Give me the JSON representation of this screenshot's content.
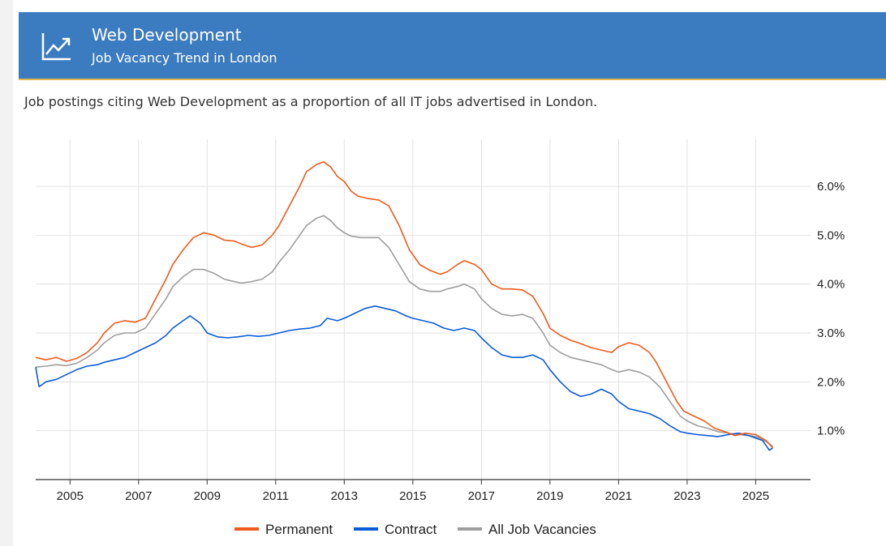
{
  "header": {
    "title": "Web Development",
    "subtitle": "Job Vacancy Trend in London",
    "icon": "trending-up-icon"
  },
  "description": "Job postings citing Web Development as a proportion of all IT jobs advertised in London.",
  "chart_data": {
    "type": "line",
    "x_ticks": [
      "2005",
      "2007",
      "2009",
      "2011",
      "2013",
      "2015",
      "2017",
      "2019",
      "2021",
      "2023",
      "2025"
    ],
    "y_ticks": [
      "1.0%",
      "2.0%",
      "3.0%",
      "4.0%",
      "5.0%",
      "6.0%"
    ],
    "xlim": [
      2004.0,
      2026.6
    ],
    "ylim": [
      0.0,
      6.0
    ],
    "y_axis_position": "right",
    "grid": true,
    "legend_position": "bottom",
    "series": [
      {
        "name": "Permanent",
        "color": "#f05a1a",
        "points": [
          [
            2004.0,
            2.5
          ],
          [
            2004.3,
            2.45
          ],
          [
            2004.6,
            2.5
          ],
          [
            2004.9,
            2.42
          ],
          [
            2005.2,
            2.48
          ],
          [
            2005.5,
            2.6
          ],
          [
            2005.8,
            2.8
          ],
          [
            2006.0,
            3.0
          ],
          [
            2006.3,
            3.2
          ],
          [
            2006.6,
            3.25
          ],
          [
            2006.9,
            3.22
          ],
          [
            2007.2,
            3.3
          ],
          [
            2007.5,
            3.7
          ],
          [
            2007.8,
            4.1
          ],
          [
            2008.0,
            4.4
          ],
          [
            2008.3,
            4.7
          ],
          [
            2008.6,
            4.95
          ],
          [
            2008.9,
            5.05
          ],
          [
            2009.2,
            5.0
          ],
          [
            2009.5,
            4.9
          ],
          [
            2009.8,
            4.88
          ],
          [
            2010.0,
            4.82
          ],
          [
            2010.3,
            4.75
          ],
          [
            2010.6,
            4.8
          ],
          [
            2010.9,
            5.0
          ],
          [
            2011.1,
            5.2
          ],
          [
            2011.4,
            5.6
          ],
          [
            2011.7,
            6.0
          ],
          [
            2011.9,
            6.3
          ],
          [
            2012.2,
            6.45
          ],
          [
            2012.4,
            6.5
          ],
          [
            2012.6,
            6.4
          ],
          [
            2012.8,
            6.2
          ],
          [
            2013.0,
            6.1
          ],
          [
            2013.2,
            5.9
          ],
          [
            2013.4,
            5.8
          ],
          [
            2013.7,
            5.75
          ],
          [
            2014.0,
            5.72
          ],
          [
            2014.3,
            5.6
          ],
          [
            2014.6,
            5.2
          ],
          [
            2014.9,
            4.7
          ],
          [
            2015.2,
            4.4
          ],
          [
            2015.5,
            4.28
          ],
          [
            2015.8,
            4.2
          ],
          [
            2016.0,
            4.25
          ],
          [
            2016.3,
            4.4
          ],
          [
            2016.5,
            4.48
          ],
          [
            2016.8,
            4.4
          ],
          [
            2017.0,
            4.3
          ],
          [
            2017.3,
            4.0
          ],
          [
            2017.6,
            3.9
          ],
          [
            2017.9,
            3.9
          ],
          [
            2018.2,
            3.88
          ],
          [
            2018.5,
            3.75
          ],
          [
            2018.8,
            3.4
          ],
          [
            2019.0,
            3.1
          ],
          [
            2019.3,
            2.95
          ],
          [
            2019.6,
            2.85
          ],
          [
            2019.9,
            2.78
          ],
          [
            2020.2,
            2.7
          ],
          [
            2020.5,
            2.65
          ],
          [
            2020.8,
            2.6
          ],
          [
            2021.0,
            2.72
          ],
          [
            2021.3,
            2.8
          ],
          [
            2021.6,
            2.75
          ],
          [
            2021.9,
            2.6
          ],
          [
            2022.1,
            2.4
          ],
          [
            2022.4,
            2.0
          ],
          [
            2022.7,
            1.6
          ],
          [
            2022.9,
            1.4
          ],
          [
            2023.2,
            1.3
          ],
          [
            2023.5,
            1.2
          ],
          [
            2023.8,
            1.05
          ],
          [
            2024.1,
            0.98
          ],
          [
            2024.4,
            0.9
          ],
          [
            2024.7,
            0.95
          ],
          [
            2025.0,
            0.92
          ],
          [
            2025.3,
            0.8
          ],
          [
            2025.5,
            0.65
          ]
        ]
      },
      {
        "name": "Contract",
        "color": "#0b5bd8",
        "points": [
          [
            2004.0,
            2.3
          ],
          [
            2004.1,
            1.9
          ],
          [
            2004.3,
            2.0
          ],
          [
            2004.6,
            2.05
          ],
          [
            2004.9,
            2.15
          ],
          [
            2005.2,
            2.25
          ],
          [
            2005.5,
            2.32
          ],
          [
            2005.8,
            2.35
          ],
          [
            2006.0,
            2.4
          ],
          [
            2006.3,
            2.45
          ],
          [
            2006.6,
            2.5
          ],
          [
            2006.9,
            2.6
          ],
          [
            2007.2,
            2.7
          ],
          [
            2007.5,
            2.8
          ],
          [
            2007.8,
            2.95
          ],
          [
            2008.0,
            3.1
          ],
          [
            2008.3,
            3.25
          ],
          [
            2008.5,
            3.35
          ],
          [
            2008.8,
            3.2
          ],
          [
            2009.0,
            3.0
          ],
          [
            2009.3,
            2.92
          ],
          [
            2009.6,
            2.9
          ],
          [
            2009.9,
            2.92
          ],
          [
            2010.2,
            2.95
          ],
          [
            2010.5,
            2.93
          ],
          [
            2010.8,
            2.95
          ],
          [
            2011.1,
            3.0
          ],
          [
            2011.4,
            3.05
          ],
          [
            2011.7,
            3.08
          ],
          [
            2012.0,
            3.1
          ],
          [
            2012.3,
            3.15
          ],
          [
            2012.5,
            3.3
          ],
          [
            2012.8,
            3.25
          ],
          [
            2013.0,
            3.3
          ],
          [
            2013.3,
            3.4
          ],
          [
            2013.6,
            3.5
          ],
          [
            2013.9,
            3.55
          ],
          [
            2014.2,
            3.5
          ],
          [
            2014.5,
            3.45
          ],
          [
            2014.8,
            3.35
          ],
          [
            2015.0,
            3.3
          ],
          [
            2015.3,
            3.25
          ],
          [
            2015.6,
            3.2
          ],
          [
            2015.9,
            3.1
          ],
          [
            2016.2,
            3.05
          ],
          [
            2016.5,
            3.1
          ],
          [
            2016.8,
            3.05
          ],
          [
            2017.0,
            2.9
          ],
          [
            2017.3,
            2.7
          ],
          [
            2017.6,
            2.55
          ],
          [
            2017.9,
            2.5
          ],
          [
            2018.2,
            2.5
          ],
          [
            2018.5,
            2.55
          ],
          [
            2018.8,
            2.45
          ],
          [
            2019.0,
            2.25
          ],
          [
            2019.3,
            2.0
          ],
          [
            2019.6,
            1.8
          ],
          [
            2019.9,
            1.7
          ],
          [
            2020.2,
            1.75
          ],
          [
            2020.5,
            1.85
          ],
          [
            2020.8,
            1.75
          ],
          [
            2021.0,
            1.6
          ],
          [
            2021.3,
            1.45
          ],
          [
            2021.6,
            1.4
          ],
          [
            2021.9,
            1.35
          ],
          [
            2022.2,
            1.25
          ],
          [
            2022.5,
            1.1
          ],
          [
            2022.8,
            0.98
          ],
          [
            2023.0,
            0.95
          ],
          [
            2023.3,
            0.92
          ],
          [
            2023.6,
            0.9
          ],
          [
            2023.9,
            0.88
          ],
          [
            2024.2,
            0.92
          ],
          [
            2024.5,
            0.95
          ],
          [
            2024.8,
            0.9
          ],
          [
            2025.0,
            0.85
          ],
          [
            2025.2,
            0.8
          ],
          [
            2025.4,
            0.6
          ],
          [
            2025.5,
            0.65
          ]
        ]
      },
      {
        "name": "All Job Vacancies",
        "color": "#9e9e9e",
        "points": [
          [
            2004.0,
            2.3
          ],
          [
            2004.3,
            2.32
          ],
          [
            2004.6,
            2.35
          ],
          [
            2004.9,
            2.33
          ],
          [
            2005.2,
            2.38
          ],
          [
            2005.5,
            2.5
          ],
          [
            2005.8,
            2.65
          ],
          [
            2006.0,
            2.8
          ],
          [
            2006.3,
            2.95
          ],
          [
            2006.6,
            3.0
          ],
          [
            2006.9,
            3.0
          ],
          [
            2007.2,
            3.1
          ],
          [
            2007.5,
            3.4
          ],
          [
            2007.8,
            3.7
          ],
          [
            2008.0,
            3.95
          ],
          [
            2008.3,
            4.15
          ],
          [
            2008.6,
            4.3
          ],
          [
            2008.9,
            4.3
          ],
          [
            2009.2,
            4.22
          ],
          [
            2009.5,
            4.1
          ],
          [
            2009.8,
            4.05
          ],
          [
            2010.0,
            4.02
          ],
          [
            2010.3,
            4.05
          ],
          [
            2010.6,
            4.1
          ],
          [
            2010.9,
            4.25
          ],
          [
            2011.1,
            4.45
          ],
          [
            2011.4,
            4.7
          ],
          [
            2011.7,
            5.0
          ],
          [
            2011.9,
            5.2
          ],
          [
            2012.2,
            5.35
          ],
          [
            2012.4,
            5.4
          ],
          [
            2012.6,
            5.3
          ],
          [
            2012.8,
            5.15
          ],
          [
            2013.0,
            5.05
          ],
          [
            2013.2,
            4.98
          ],
          [
            2013.5,
            4.95
          ],
          [
            2013.8,
            4.95
          ],
          [
            2014.0,
            4.95
          ],
          [
            2014.3,
            4.75
          ],
          [
            2014.6,
            4.4
          ],
          [
            2014.9,
            4.05
          ],
          [
            2015.2,
            3.9
          ],
          [
            2015.5,
            3.85
          ],
          [
            2015.8,
            3.85
          ],
          [
            2016.0,
            3.9
          ],
          [
            2016.3,
            3.95
          ],
          [
            2016.5,
            4.0
          ],
          [
            2016.8,
            3.9
          ],
          [
            2017.0,
            3.7
          ],
          [
            2017.3,
            3.5
          ],
          [
            2017.6,
            3.38
          ],
          [
            2017.9,
            3.35
          ],
          [
            2018.2,
            3.38
          ],
          [
            2018.5,
            3.3
          ],
          [
            2018.8,
            3.0
          ],
          [
            2019.0,
            2.75
          ],
          [
            2019.3,
            2.6
          ],
          [
            2019.6,
            2.5
          ],
          [
            2019.9,
            2.45
          ],
          [
            2020.2,
            2.4
          ],
          [
            2020.5,
            2.35
          ],
          [
            2020.8,
            2.25
          ],
          [
            2021.0,
            2.2
          ],
          [
            2021.3,
            2.25
          ],
          [
            2021.6,
            2.2
          ],
          [
            2021.9,
            2.1
          ],
          [
            2022.2,
            1.9
          ],
          [
            2022.5,
            1.6
          ],
          [
            2022.8,
            1.3
          ],
          [
            2023.0,
            1.2
          ],
          [
            2023.3,
            1.1
          ],
          [
            2023.6,
            1.05
          ],
          [
            2023.9,
            0.98
          ],
          [
            2024.2,
            0.95
          ],
          [
            2024.5,
            0.92
          ],
          [
            2024.8,
            0.9
          ],
          [
            2025.0,
            0.88
          ],
          [
            2025.3,
            0.78
          ],
          [
            2025.5,
            0.68
          ]
        ]
      }
    ]
  }
}
